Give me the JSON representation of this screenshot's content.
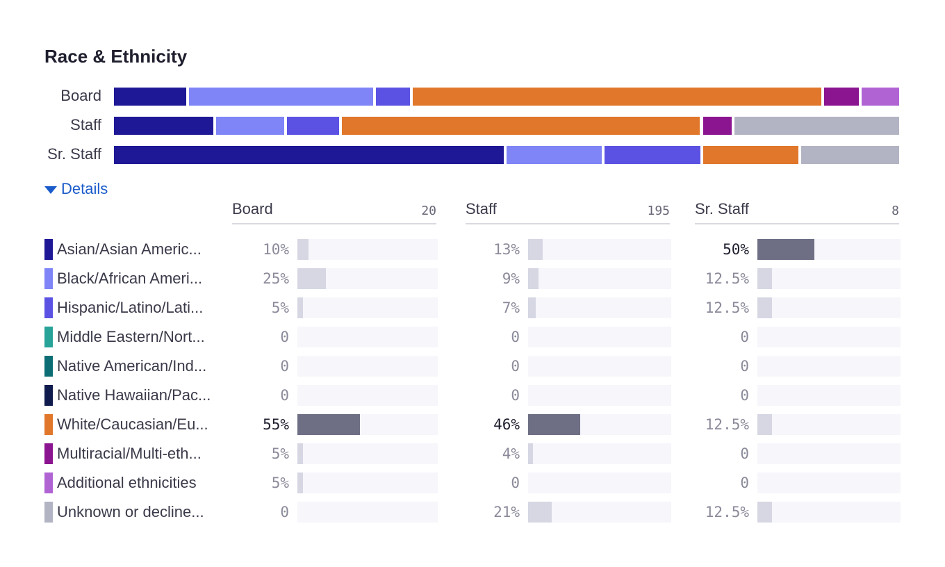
{
  "title": "Race & Ethnicity",
  "details_label": "Details",
  "colors": {
    "asian": "#1f1896",
    "black": "#7f84f7",
    "hispanic": "#5b52e3",
    "mena": "#27a398",
    "native_american": "#0c6e74",
    "native_hawaiian": "#0f1b4d",
    "white": "#e0772b",
    "multiracial": "#8b1490",
    "additional": "#b064d4",
    "unknown": "#b2b4c4",
    "accent": "#1a5bc9"
  },
  "chart_data": {
    "type": "bar",
    "title": "Race & Ethnicity",
    "stacked": true,
    "groups": [
      "Board",
      "Staff",
      "Sr. Staff"
    ],
    "group_totals": [
      "20",
      "195",
      "8"
    ],
    "categories": [
      {
        "label": "Asian/Asian Americ...",
        "color": "#1f1896"
      },
      {
        "label": "Black/African Ameri...",
        "color": "#7f84f7"
      },
      {
        "label": "Hispanic/Latino/Lati...",
        "color": "#5b52e3"
      },
      {
        "label": "Middle Eastern/Nort...",
        "color": "#27a398"
      },
      {
        "label": "Native American/Ind...",
        "color": "#0c6e74"
      },
      {
        "label": "Native Hawaiian/Pac...",
        "color": "#0f1b4d"
      },
      {
        "label": "White/Caucasian/Eu...",
        "color": "#e0772b"
      },
      {
        "label": "Multiracial/Multi-eth...",
        "color": "#8b1490"
      },
      {
        "label": "Additional ethnicities",
        "color": "#b064d4"
      },
      {
        "label": "Unknown or decline...",
        "color": "#b2b4c4"
      }
    ],
    "values": {
      "Board": [
        10,
        25,
        5,
        0,
        0,
        0,
        55,
        5,
        5,
        0
      ],
      "Staff": [
        13,
        9,
        7,
        0,
        0,
        0,
        46,
        4,
        0,
        21
      ],
      "Sr. Staff": [
        50,
        12.5,
        12.5,
        0,
        0,
        0,
        12.5,
        0,
        0,
        12.5
      ]
    },
    "value_labels": {
      "Board": [
        "10%",
        "25%",
        "5%",
        "0",
        "0",
        "0",
        "55%",
        "5%",
        "5%",
        "0"
      ],
      "Staff": [
        "13%",
        "9%",
        "7%",
        "0",
        "0",
        "0",
        "46%",
        "4%",
        "0",
        "21%"
      ],
      "Sr. Staff": [
        "50%",
        "12.5%",
        "12.5%",
        "0",
        "0",
        "0",
        "12.5%",
        "0",
        "0",
        "12.5%"
      ]
    },
    "column_headers": [
      "Board",
      "Staff",
      "Sr.  Staff"
    ],
    "xlim": [
      0,
      100
    ]
  }
}
